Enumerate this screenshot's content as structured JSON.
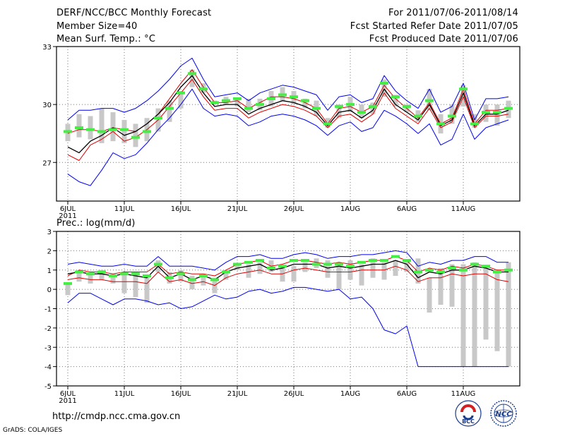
{
  "header": {
    "title": "DERF/NCC/BCC Monthly Forecast",
    "member_size": "Member Size=40",
    "variable1": "Mean Surf. Temp.: °C",
    "for_range": "For 2011/07/06-2011/08/14",
    "started": "Fcst Started Refer Date 2011/07/05",
    "produced": "Fcst Produced Date 2011/07/06"
  },
  "panel2_title": "Prec.: log(mm/d)",
  "footer": {
    "url": "http://cmdp.ncc.cma.gov.cn",
    "grads": "GrADS: COLA/IGES",
    "logo_bcc": "BCC",
    "logo_ncc": "NCC"
  },
  "colors": {
    "ensemble_bar": "#c8c8c8",
    "observed": "#44ee44",
    "mean": "#000000",
    "inner_band": "#dd0000",
    "outer_band": "#0000ee"
  },
  "chart_data": [
    {
      "type": "line",
      "title": "Mean Surf. Temp.: °C",
      "x_ticks": [
        "6JUL",
        "11JUL",
        "16JUL",
        "21JUL",
        "26JUL",
        "1AUG",
        "6AUG",
        "11AUG"
      ],
      "x_tick_days": [
        1,
        6,
        11,
        16,
        21,
        26,
        31,
        36
      ],
      "x_year_label": "2011",
      "days": 40,
      "ylim": [
        25,
        33
      ],
      "y_ticks": [
        27,
        30,
        33
      ],
      "grid": true,
      "series": [
        {
          "name": "bar_low",
          "values": [
            28.1,
            28.3,
            28.2,
            28.0,
            28.1,
            28.0,
            27.8,
            28.1,
            28.6,
            29.1,
            29.8,
            30.9,
            30.6,
            30.0,
            30.0,
            29.9,
            29.6,
            29.7,
            29.9,
            30.2,
            30.0,
            29.8,
            29.4,
            28.8,
            29.3,
            29.6,
            29.3,
            29.5,
            30.4,
            29.9,
            29.6,
            29.1,
            29.7,
            28.5,
            29.0,
            29.9,
            28.8,
            29.1,
            28.9,
            29.3
          ],
          "high": [
            29.0,
            29.5,
            29.4,
            29.8,
            29.6,
            29.2,
            29.0,
            29.3,
            29.8,
            30.2,
            30.7,
            31.8,
            31.1,
            30.2,
            30.4,
            30.3,
            30.3,
            30.3,
            30.7,
            30.9,
            30.7,
            30.3,
            30.2,
            29.3,
            30.0,
            30.4,
            30.0,
            30.1,
            31.3,
            30.5,
            30.0,
            29.7,
            30.8,
            29.5,
            30.0,
            31.0,
            29.5,
            30.0,
            30.0,
            30.2
          ]
        },
        {
          "name": "observed",
          "values": [
            28.6,
            28.8,
            28.7,
            28.6,
            28.7,
            28.7,
            28.3,
            28.6,
            29.3,
            29.8,
            30.6,
            31.6,
            30.8,
            30.1,
            30.2,
            30.3,
            29.8,
            30.0,
            30.3,
            30.5,
            30.4,
            30.2,
            29.8,
            29.0,
            29.9,
            30.0,
            29.6,
            29.9,
            31.1,
            30.4,
            29.9,
            29.4,
            30.2,
            29.0,
            29.4,
            30.8,
            29.0,
            29.6,
            29.6,
            29.8
          ]
        },
        {
          "name": "outer_high",
          "values": [
            29.2,
            29.7,
            29.7,
            29.8,
            29.8,
            29.6,
            29.8,
            30.2,
            30.7,
            31.3,
            32.0,
            32.4,
            31.3,
            30.4,
            30.5,
            30.6,
            30.2,
            30.6,
            30.8,
            31.0,
            30.9,
            30.7,
            30.5,
            29.7,
            30.4,
            30.5,
            30.1,
            30.3,
            31.5,
            30.7,
            30.2,
            29.8,
            30.8,
            29.6,
            29.9,
            31.1,
            29.2,
            30.3,
            30.3,
            30.4
          ]
        },
        {
          "name": "inner_high",
          "values": [
            28.5,
            28.7,
            28.7,
            28.6,
            28.8,
            28.7,
            28.6,
            29.0,
            29.5,
            30.3,
            31.1,
            31.8,
            30.9,
            30.1,
            30.1,
            30.2,
            29.8,
            30.1,
            30.4,
            30.4,
            30.3,
            30.1,
            29.8,
            29.0,
            29.8,
            29.9,
            29.6,
            29.9,
            31.0,
            30.3,
            29.8,
            29.3,
            30.1,
            29.0,
            29.3,
            30.8,
            29.0,
            29.7,
            29.7,
            29.8
          ]
        },
        {
          "name": "mean",
          "values": [
            27.8,
            27.5,
            28.1,
            28.4,
            28.8,
            28.4,
            28.6,
            29.0,
            29.5,
            30.1,
            30.9,
            31.5,
            30.6,
            29.9,
            30.0,
            30.0,
            29.5,
            29.8,
            30.0,
            30.2,
            30.1,
            29.9,
            29.6,
            28.9,
            29.6,
            29.7,
            29.3,
            29.7,
            30.8,
            30.0,
            29.6,
            29.2,
            30.0,
            28.9,
            29.2,
            30.6,
            28.9,
            29.5,
            29.5,
            29.7
          ]
        },
        {
          "name": "inner_low",
          "values": [
            27.4,
            27.1,
            27.9,
            28.2,
            28.6,
            28.1,
            28.3,
            28.7,
            29.2,
            29.9,
            30.6,
            31.3,
            30.4,
            29.7,
            29.8,
            29.8,
            29.3,
            29.6,
            29.8,
            30.0,
            29.9,
            29.7,
            29.4,
            28.8,
            29.4,
            29.5,
            29.1,
            29.5,
            30.6,
            29.8,
            29.4,
            29.0,
            29.8,
            28.8,
            29.1,
            30.4,
            28.8,
            29.4,
            29.4,
            29.5
          ]
        },
        {
          "name": "outer_low",
          "values": [
            26.4,
            26.0,
            25.8,
            26.6,
            27.5,
            27.2,
            27.4,
            28.0,
            28.7,
            29.3,
            30.0,
            30.8,
            29.8,
            29.4,
            29.5,
            29.4,
            28.9,
            29.1,
            29.4,
            29.5,
            29.4,
            29.2,
            28.9,
            28.4,
            28.9,
            29.1,
            28.6,
            28.8,
            29.7,
            29.4,
            29.0,
            28.5,
            29.0,
            27.9,
            28.2,
            29.5,
            28.2,
            28.8,
            29.0,
            29.2
          ]
        }
      ]
    },
    {
      "type": "line",
      "title": "Prec.: log(mm/d)",
      "x_ticks": [
        "6JUL",
        "11JUL",
        "16JUL",
        "21JUL",
        "26JUL",
        "1AUG",
        "6AUG",
        "11AUG"
      ],
      "x_tick_days": [
        1,
        6,
        11,
        16,
        21,
        26,
        31,
        36
      ],
      "x_year_label": "2011",
      "days": 40,
      "ylim": [
        -5,
        3
      ],
      "y_ticks": [
        -5,
        -4,
        -3,
        -2,
        -1,
        0,
        1,
        2,
        3
      ],
      "grid": true,
      "series": [
        {
          "name": "bar_low",
          "values": [
            -0.3,
            0.4,
            0.3,
            0.5,
            0.3,
            -0.2,
            -0.4,
            -0.7,
            0.9,
            0.3,
            0.4,
            0.0,
            0.2,
            -0.2,
            0.5,
            1.0,
            0.6,
            0.8,
            0.9,
            0.4,
            0.4,
            0.9,
            1.1,
            0.6,
            0.0,
            0.5,
            0.2,
            0.6,
            0.5,
            0.7,
            0.9,
            0.3,
            -1.2,
            -0.8,
            -0.9,
            -4.0,
            -4.0,
            -2.6,
            -3.2,
            -4.0
          ],
          "high": [
            0.3,
            0.9,
            0.8,
            1.0,
            0.8,
            0.9,
            0.9,
            0.7,
            1.5,
            0.9,
            1.0,
            0.7,
            0.8,
            0.6,
            1.0,
            1.3,
            1.3,
            1.4,
            1.5,
            1.2,
            1.2,
            1.4,
            1.6,
            1.5,
            1.3,
            1.5,
            1.3,
            1.6,
            1.4,
            1.5,
            1.5,
            1.6,
            0.6,
            1.1,
            1.3,
            1.3,
            1.4,
            1.2,
            1.0,
            1.4
          ]
        },
        {
          "name": "observed",
          "values": [
            0.3,
            0.9,
            0.8,
            0.9,
            0.7,
            0.8,
            0.8,
            0.7,
            1.3,
            0.6,
            0.8,
            0.5,
            0.7,
            0.5,
            0.9,
            1.3,
            1.4,
            1.5,
            1.1,
            1.2,
            1.5,
            1.5,
            1.3,
            1.3,
            1.3,
            1.2,
            1.4,
            1.5,
            1.5,
            1.7,
            1.5,
            0.9,
            1.0,
            0.9,
            1.1,
            1.0,
            1.3,
            1.2,
            0.9,
            1.0
          ]
        },
        {
          "name": "outer_high",
          "values": [
            1.3,
            1.4,
            1.3,
            1.2,
            1.2,
            1.3,
            1.2,
            1.2,
            1.7,
            1.2,
            1.2,
            1.2,
            1.1,
            1.0,
            1.4,
            1.7,
            1.7,
            1.8,
            1.6,
            1.6,
            1.8,
            1.9,
            1.8,
            1.6,
            1.7,
            1.7,
            1.8,
            1.8,
            1.9,
            2.0,
            1.9,
            1.2,
            1.4,
            1.3,
            1.5,
            1.5,
            1.7,
            1.7,
            1.4,
            1.4
          ]
        },
        {
          "name": "inner_high",
          "values": [
            0.7,
            1.0,
            0.9,
            0.9,
            0.8,
            0.9,
            0.9,
            0.9,
            1.3,
            0.8,
            0.9,
            0.8,
            0.8,
            0.7,
            1.0,
            1.3,
            1.4,
            1.5,
            1.2,
            1.3,
            1.5,
            1.5,
            1.4,
            1.3,
            1.4,
            1.3,
            1.4,
            1.5,
            1.5,
            1.7,
            1.5,
            0.9,
            1.1,
            1.0,
            1.2,
            1.1,
            1.3,
            1.2,
            1.0,
            1.0
          ]
        },
        {
          "name": "mean",
          "values": [
            0.8,
            0.9,
            0.8,
            0.8,
            0.7,
            0.8,
            0.7,
            0.6,
            1.2,
            0.6,
            0.8,
            0.5,
            0.7,
            0.5,
            0.9,
            1.1,
            1.2,
            1.3,
            1.0,
            1.1,
            1.3,
            1.3,
            1.3,
            1.1,
            1.2,
            1.1,
            1.2,
            1.3,
            1.3,
            1.5,
            1.3,
            0.6,
            0.9,
            0.8,
            1.0,
            1.0,
            1.2,
            1.1,
            0.9,
            0.9
          ]
        },
        {
          "name": "inner_low",
          "values": [
            0.5,
            0.6,
            0.5,
            0.5,
            0.4,
            0.4,
            0.4,
            0.3,
            0.9,
            0.4,
            0.5,
            0.3,
            0.4,
            0.2,
            0.6,
            0.8,
            0.9,
            1.0,
            0.8,
            0.8,
            1.0,
            1.1,
            1.0,
            0.9,
            0.9,
            0.9,
            1.0,
            1.0,
            1.0,
            1.2,
            1.0,
            0.4,
            0.6,
            0.6,
            0.8,
            0.7,
            0.8,
            0.8,
            0.5,
            0.4
          ]
        },
        {
          "name": "outer_low",
          "values": [
            -0.7,
            -0.2,
            -0.2,
            -0.5,
            -0.8,
            -0.5,
            -0.5,
            -0.6,
            -0.8,
            -0.7,
            -1.0,
            -0.9,
            -0.6,
            -0.3,
            -0.5,
            -0.4,
            -0.1,
            0.0,
            -0.2,
            -0.1,
            0.1,
            0.1,
            0.0,
            -0.1,
            0.0,
            -0.5,
            -0.4,
            -1.0,
            -2.1,
            -2.3,
            -1.9,
            -4.0,
            -4.0,
            -4.0,
            -4.0,
            -4.0,
            -4.0,
            -4.0,
            -4.0,
            -4.0
          ]
        }
      ]
    }
  ]
}
